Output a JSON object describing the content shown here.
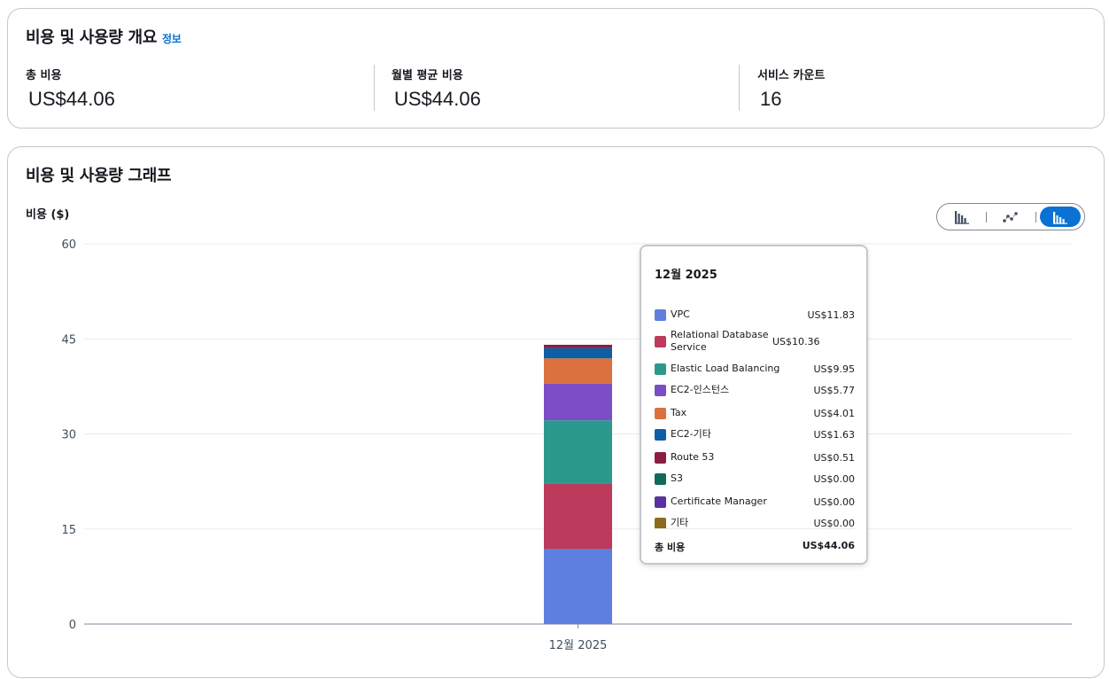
{
  "summary": {
    "title": "비용 및 사용량 개요",
    "info_link": "정보",
    "metrics": [
      {
        "label": "총 비용",
        "value": "US$44.06"
      },
      {
        "label": "월별 평균 비용",
        "value": "US$44.06"
      },
      {
        "label": "서비스 카운트",
        "value": "16"
      }
    ]
  },
  "graph": {
    "title": "비용 및 사용량 그래프",
    "toggle": {
      "options": [
        "bar-chart-icon",
        "line-chart-icon",
        "stacked-bar-chart-icon"
      ],
      "active": "stacked-bar-chart-icon",
      "active_color": "#0972d3"
    }
  },
  "chart_data": {
    "type": "bar",
    "stacked": true,
    "ylabel": "비용 ($)",
    "ylim": [
      0,
      60
    ],
    "yticks": [
      "0",
      "15",
      "30",
      "45",
      "60"
    ],
    "categories": [
      "12월 2025"
    ],
    "grid": true,
    "series": [
      {
        "name": "VPC",
        "values": [
          11.83
        ],
        "color": "#5e7fe0",
        "label": "US$11.83"
      },
      {
        "name": "Relational Database Service",
        "values": [
          10.36
        ],
        "color": "#bc3a5c",
        "label": "US$10.36"
      },
      {
        "name": "Elastic Load Balancing",
        "values": [
          9.95
        ],
        "color": "#2b9a8c",
        "label": "US$9.95"
      },
      {
        "name": "EC2-인스턴스",
        "values": [
          5.77
        ],
        "color": "#7b4ec6",
        "label": "US$5.77"
      },
      {
        "name": "Tax",
        "values": [
          4.01
        ],
        "color": "#dc7140",
        "label": "US$4.01"
      },
      {
        "name": "EC2-기타",
        "values": [
          1.63
        ],
        "color": "#0d5fa6",
        "label": "US$1.63"
      },
      {
        "name": "Route 53",
        "values": [
          0.51
        ],
        "color": "#8b1d45",
        "label": "US$0.51"
      },
      {
        "name": "S3",
        "values": [
          0.0
        ],
        "color": "#0f6a57",
        "label": "US$0.00"
      },
      {
        "name": "Certificate Manager",
        "values": [
          0.0
        ],
        "color": "#5a31a0",
        "label": "US$0.00"
      },
      {
        "name": "기타",
        "values": [
          0.0
        ],
        "color": "#8d6a1c",
        "label": "US$0.00"
      }
    ],
    "tooltip": {
      "title": "12월 2025",
      "total_label": "총 비용",
      "total_value": "US$44.06"
    }
  }
}
